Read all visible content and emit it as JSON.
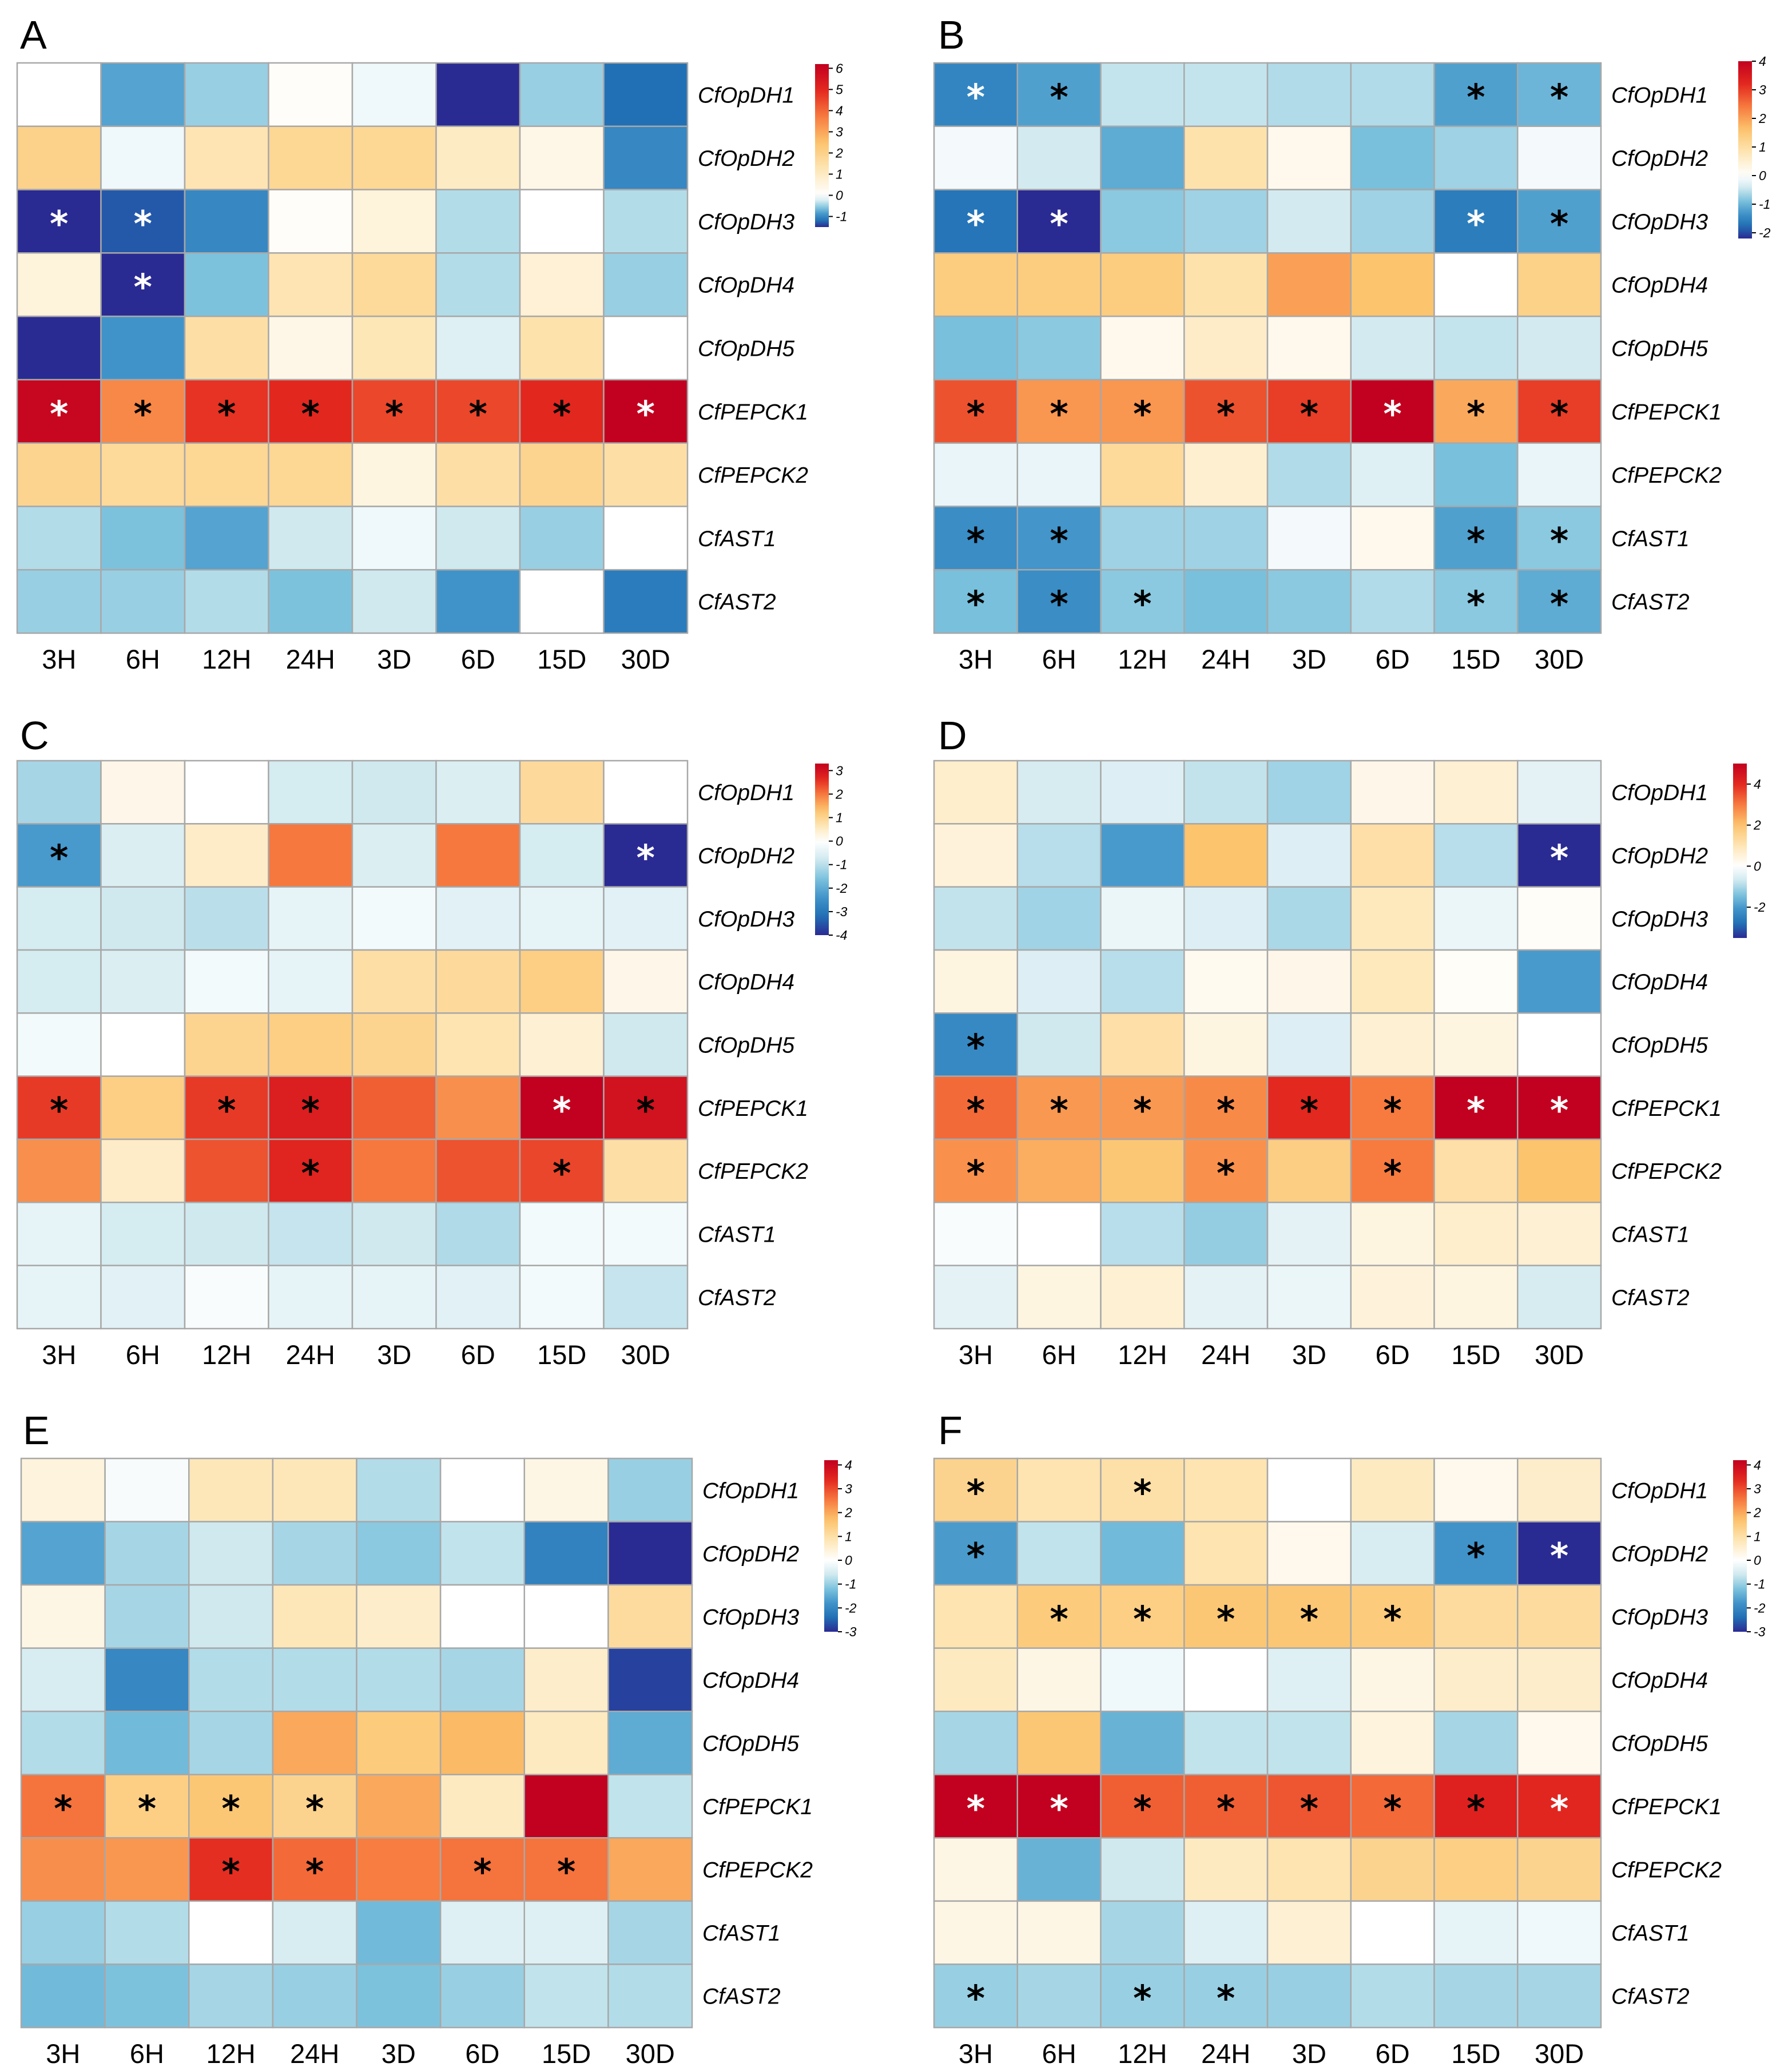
{
  "colors": {
    "scale": [
      "#2a2a93",
      "#2170b5",
      "#4093c9",
      "#7cc2dd",
      "#cfe9ef",
      "#ffffff",
      "#fde6b5",
      "#fcc46d",
      "#f77b3f",
      "#e3281f",
      "#c2001f"
    ],
    "star_dark": "#000000",
    "star_light": "#ffffff",
    "grid": "#a8a8a8"
  },
  "chart_data": [
    {
      "type": "heatmap",
      "panel": "A",
      "rows": [
        "CfOpDH1",
        "CfOpDH2",
        "CfOpDH3",
        "CfOpDH4",
        "CfOpDH5",
        "CfPEPCK1",
        "CfPEPCK2",
        "CfAST1",
        "CfAST2"
      ],
      "columns": [
        "3H",
        "6H",
        "12H",
        "24H",
        "3D",
        "6D",
        "15D",
        "30D"
      ],
      "values": [
        [
          0.0,
          -0.8,
          -0.5,
          0.1,
          -0.1,
          -1.5,
          -0.5,
          -1.2
        ],
        [
          2.0,
          -0.1,
          1.3,
          1.8,
          1.8,
          1.0,
          0.4,
          -1.0
        ],
        [
          -1.5,
          -1.3,
          -1.0,
          0.1,
          0.6,
          -0.4,
          0.0,
          -0.4
        ],
        [
          0.6,
          -1.5,
          -0.6,
          1.3,
          1.7,
          -0.4,
          0.7,
          -0.5
        ],
        [
          -1.5,
          -0.9,
          1.5,
          0.4,
          1.2,
          -0.2,
          1.4,
          0.0
        ],
        [
          6.0,
          3.5,
          4.8,
          5.0,
          4.5,
          4.5,
          5.0,
          6.2
        ],
        [
          1.9,
          1.7,
          1.8,
          1.8,
          0.5,
          1.5,
          1.9,
          1.5
        ],
        [
          -0.4,
          -0.6,
          -0.8,
          -0.3,
          -0.1,
          -0.3,
          -0.5,
          0.0
        ],
        [
          -0.5,
          -0.5,
          -0.4,
          -0.6,
          -0.3,
          -0.9,
          0.0,
          -1.1
        ]
      ],
      "significant": [
        [
          0,
          0,
          0,
          0,
          0,
          0,
          0,
          0
        ],
        [
          0,
          0,
          0,
          0,
          0,
          0,
          0,
          0
        ],
        [
          1,
          1,
          0,
          0,
          0,
          0,
          0,
          0
        ],
        [
          0,
          1,
          0,
          0,
          0,
          0,
          0,
          0
        ],
        [
          0,
          0,
          0,
          0,
          0,
          0,
          0,
          0
        ],
        [
          1,
          1,
          1,
          1,
          1,
          1,
          1,
          1
        ],
        [
          0,
          0,
          0,
          0,
          0,
          0,
          0,
          0
        ],
        [
          0,
          0,
          0,
          0,
          0,
          0,
          0,
          0
        ],
        [
          0,
          0,
          0,
          0,
          0,
          0,
          0,
          0
        ]
      ],
      "star_white": [
        [
          2,
          0
        ],
        [
          2,
          1
        ],
        [
          3,
          1
        ],
        [
          5,
          0
        ],
        [
          5,
          7
        ]
      ],
      "colorbar": {
        "min": -1.5,
        "max": 6.2,
        "ticks": [
          6,
          5,
          4,
          3,
          2,
          1,
          0,
          -1
        ]
      }
    },
    {
      "type": "heatmap",
      "panel": "B",
      "rows": [
        "CfOpDH1",
        "CfOpDH2",
        "CfOpDH3",
        "CfOpDH4",
        "CfOpDH5",
        "CfPEPCK1",
        "CfPEPCK2",
        "CfAST1",
        "CfAST2"
      ],
      "columns": [
        "3H",
        "6H",
        "12H",
        "24H",
        "3D",
        "6D",
        "15D",
        "30D"
      ],
      "values": [
        [
          -1.5,
          -1.2,
          -0.5,
          -0.5,
          -0.6,
          -0.6,
          -1.2,
          -1.0
        ],
        [
          -0.1,
          -0.4,
          -1.1,
          0.9,
          0.2,
          -0.9,
          -0.7,
          -0.1
        ],
        [
          -1.7,
          -2.2,
          -0.8,
          -0.7,
          -0.4,
          -0.7,
          -1.6,
          -1.2
        ],
        [
          1.4,
          1.4,
          1.4,
          0.9,
          2.0,
          1.6,
          0.0,
          1.3
        ],
        [
          -0.9,
          -0.8,
          0.2,
          0.6,
          0.2,
          -0.4,
          -0.5,
          -0.4
        ],
        [
          2.8,
          2.1,
          2.1,
          2.8,
          3.0,
          4.0,
          1.9,
          3.0
        ],
        [
          -0.2,
          -0.2,
          1.1,
          0.5,
          -0.6,
          -0.3,
          -0.9,
          -0.2
        ],
        [
          -1.4,
          -1.3,
          -0.7,
          -0.7,
          -0.1,
          0.2,
          -1.2,
          -0.8
        ],
        [
          -0.9,
          -1.4,
          -0.8,
          -0.9,
          -0.8,
          -0.6,
          -0.8,
          -1.1
        ]
      ],
      "significant": [
        [
          1,
          1,
          0,
          0,
          0,
          0,
          1,
          1
        ],
        [
          0,
          0,
          0,
          0,
          0,
          0,
          0,
          0
        ],
        [
          1,
          1,
          0,
          0,
          0,
          0,
          1,
          1
        ],
        [
          0,
          0,
          0,
          0,
          0,
          0,
          0,
          0
        ],
        [
          0,
          0,
          0,
          0,
          0,
          0,
          0,
          0
        ],
        [
          1,
          1,
          1,
          1,
          1,
          1,
          1,
          1
        ],
        [
          0,
          0,
          0,
          0,
          0,
          0,
          0,
          0
        ],
        [
          1,
          1,
          0,
          0,
          0,
          0,
          1,
          1
        ],
        [
          1,
          1,
          1,
          0,
          0,
          0,
          1,
          1
        ]
      ],
      "star_white": [
        [
          0,
          0
        ],
        [
          2,
          0
        ],
        [
          2,
          1
        ],
        [
          2,
          6
        ],
        [
          5,
          5
        ]
      ],
      "colorbar": {
        "min": -2.2,
        "max": 4.0,
        "ticks": [
          4,
          3,
          2,
          1,
          0,
          -1,
          -2
        ]
      }
    },
    {
      "type": "heatmap",
      "panel": "C",
      "rows": [
        "CfOpDH1",
        "CfOpDH2",
        "CfOpDH3",
        "CfOpDH4",
        "CfOpDH5",
        "CfPEPCK1",
        "CfPEPCK2",
        "CfAST1",
        "CfAST2"
      ],
      "columns": [
        "3H",
        "6H",
        "12H",
        "24H",
        "3D",
        "6D",
        "15D",
        "30D"
      ],
      "values": [
        [
          -1.2,
          0.2,
          0.0,
          -0.7,
          -0.8,
          -0.6,
          0.9,
          0.0
        ],
        [
          -2.3,
          -0.6,
          0.5,
          2.0,
          -0.6,
          2.0,
          -0.7,
          -4.0
        ],
        [
          -0.7,
          -0.8,
          -1.0,
          -0.4,
          -0.2,
          -0.5,
          -0.4,
          -0.5
        ],
        [
          -0.7,
          -0.6,
          -0.2,
          -0.4,
          0.8,
          0.9,
          1.1,
          0.2
        ],
        [
          -0.2,
          0.0,
          1.0,
          1.1,
          1.0,
          0.7,
          0.4,
          -0.8
        ],
        [
          2.5,
          1.1,
          2.5,
          2.8,
          2.2,
          1.8,
          3.3,
          3.0
        ],
        [
          1.8,
          0.5,
          2.3,
          2.7,
          2.0,
          2.3,
          2.4,
          0.8
        ],
        [
          -0.4,
          -0.7,
          -0.8,
          -0.9,
          -0.8,
          -1.1,
          -0.2,
          -0.2
        ],
        [
          -0.4,
          -0.5,
          -0.1,
          -0.4,
          -0.4,
          -0.5,
          -0.2,
          -0.9
        ]
      ],
      "significant": [
        [
          0,
          0,
          0,
          0,
          0,
          0,
          0,
          0
        ],
        [
          1,
          0,
          0,
          0,
          0,
          0,
          0,
          1
        ],
        [
          0,
          0,
          0,
          0,
          0,
          0,
          0,
          0
        ],
        [
          0,
          0,
          0,
          0,
          0,
          0,
          0,
          0
        ],
        [
          0,
          0,
          0,
          0,
          0,
          0,
          0,
          0
        ],
        [
          1,
          0,
          1,
          1,
          0,
          0,
          1,
          1
        ],
        [
          0,
          0,
          0,
          1,
          0,
          0,
          1,
          0
        ],
        [
          0,
          0,
          0,
          0,
          0,
          0,
          0,
          0
        ],
        [
          0,
          0,
          0,
          0,
          0,
          0,
          0,
          0
        ]
      ],
      "star_white": [
        [
          1,
          7
        ],
        [
          5,
          6
        ]
      ],
      "colorbar": {
        "min": -4.0,
        "max": 3.3,
        "ticks": [
          3,
          2,
          1,
          0,
          -1,
          -2,
          -3,
          -4
        ]
      }
    },
    {
      "type": "heatmap",
      "panel": "D",
      "rows": [
        "CfOpDH1",
        "CfOpDH2",
        "CfOpDH3",
        "CfOpDH4",
        "CfOpDH5",
        "CfPEPCK1",
        "CfPEPCK2",
        "CfAST1",
        "CfAST2"
      ],
      "columns": [
        "3H",
        "6H",
        "12H",
        "24H",
        "3D",
        "6D",
        "15D",
        "30D"
      ],
      "values": [
        [
          0.7,
          -0.6,
          -0.5,
          -0.8,
          -1.1,
          0.3,
          0.6,
          -0.4
        ],
        [
          0.5,
          -0.9,
          -2.0,
          2.0,
          -0.5,
          1.2,
          -0.9,
          -3.5
        ],
        [
          -0.8,
          -1.1,
          -0.3,
          -0.5,
          -1.0,
          0.9,
          -0.3,
          0.1
        ],
        [
          0.4,
          -0.5,
          -0.9,
          0.2,
          0.3,
          0.9,
          0.1,
          -2.0
        ],
        [
          -2.3,
          -0.7,
          1.2,
          0.4,
          -0.5,
          0.6,
          0.4,
          0.0
        ],
        [
          3.2,
          2.6,
          2.6,
          2.8,
          4.0,
          3.0,
          5.0,
          5.0
        ],
        [
          2.7,
          2.3,
          1.9,
          2.7,
          1.7,
          3.0,
          1.2,
          2.0
        ],
        [
          -0.1,
          0.0,
          -0.9,
          -1.2,
          -0.4,
          0.4,
          0.7,
          0.6
        ],
        [
          -0.4,
          0.4,
          0.6,
          -0.4,
          -0.3,
          0.5,
          0.4,
          -0.6
        ]
      ],
      "significant": [
        [
          0,
          0,
          0,
          0,
          0,
          0,
          0,
          0
        ],
        [
          0,
          0,
          0,
          0,
          0,
          0,
          0,
          1
        ],
        [
          0,
          0,
          0,
          0,
          0,
          0,
          0,
          0
        ],
        [
          0,
          0,
          0,
          0,
          0,
          0,
          0,
          0
        ],
        [
          1,
          0,
          0,
          0,
          0,
          0,
          0,
          0
        ],
        [
          1,
          1,
          1,
          1,
          1,
          1,
          1,
          1
        ],
        [
          1,
          0,
          0,
          1,
          0,
          1,
          0,
          0
        ],
        [
          0,
          0,
          0,
          0,
          0,
          0,
          0,
          0
        ],
        [
          0,
          0,
          0,
          0,
          0,
          0,
          0,
          0
        ]
      ],
      "star_white": [
        [
          1,
          7
        ],
        [
          5,
          6
        ],
        [
          5,
          7
        ]
      ],
      "colorbar": {
        "min": -3.5,
        "max": 5.0,
        "ticks": [
          4,
          2,
          0,
          -2
        ]
      }
    },
    {
      "type": "heatmap",
      "panel": "E",
      "rows": [
        "CfOpDH1",
        "CfOpDH2",
        "CfOpDH3",
        "CfOpDH4",
        "CfOpDH5",
        "CfPEPCK1",
        "CfPEPCK2",
        "CfAST1",
        "CfAST2"
      ],
      "columns": [
        "3H",
        "6H",
        "12H",
        "24H",
        "3D",
        "6D",
        "15D",
        "30D"
      ],
      "values": [
        [
          0.4,
          -0.1,
          0.8,
          0.8,
          -0.8,
          0.0,
          0.3,
          -1.0
        ],
        [
          -1.6,
          -0.9,
          -0.6,
          -0.9,
          -1.1,
          -0.7,
          -2.1,
          -3.0
        ],
        [
          0.3,
          -0.9,
          -0.6,
          0.8,
          0.6,
          0.0,
          0.0,
          1.1
        ],
        [
          -0.5,
          -2.0,
          -0.8,
          -0.8,
          -0.8,
          -0.9,
          0.6,
          -2.8
        ],
        [
          -0.8,
          -1.3,
          -0.9,
          2.0,
          1.5,
          1.8,
          0.7,
          -1.5
        ],
        [
          2.6,
          1.4,
          1.6,
          1.3,
          2.0,
          0.7,
          4.2,
          -0.7
        ],
        [
          2.3,
          2.2,
          3.3,
          2.7,
          2.5,
          2.6,
          2.6,
          2.0
        ],
        [
          -1.0,
          -0.8,
          0.0,
          -0.5,
          -1.3,
          -0.4,
          -0.4,
          -0.9
        ],
        [
          -1.3,
          -1.2,
          -0.9,
          -1.0,
          -1.2,
          -1.0,
          -0.7,
          -0.8
        ]
      ],
      "significant": [
        [
          0,
          0,
          0,
          0,
          0,
          0,
          0,
          0
        ],
        [
          0,
          0,
          0,
          0,
          0,
          0,
          0,
          0
        ],
        [
          0,
          0,
          0,
          0,
          0,
          0,
          0,
          0
        ],
        [
          0,
          0,
          0,
          0,
          0,
          0,
          0,
          0
        ],
        [
          0,
          0,
          0,
          0,
          0,
          0,
          0,
          0
        ],
        [
          1,
          1,
          1,
          1,
          0,
          0,
          0,
          0
        ],
        [
          0,
          0,
          1,
          1,
          0,
          1,
          1,
          0
        ],
        [
          0,
          0,
          0,
          0,
          0,
          0,
          0,
          0
        ],
        [
          0,
          0,
          0,
          0,
          0,
          0,
          0,
          0
        ]
      ],
      "star_white": [],
      "colorbar": {
        "min": -3.0,
        "max": 4.2,
        "ticks": [
          4,
          3,
          2,
          1,
          0,
          -1,
          -2,
          -3
        ]
      }
    },
    {
      "type": "heatmap",
      "panel": "F",
      "rows": [
        "CfOpDH1",
        "CfOpDH2",
        "CfOpDH3",
        "CfOpDH4",
        "CfOpDH5",
        "CfPEPCK1",
        "CfPEPCK2",
        "CfAST1",
        "CfAST2"
      ],
      "columns": [
        "3H",
        "6H",
        "12H",
        "24H",
        "3D",
        "6D",
        "15D",
        "30D"
      ],
      "values": [
        [
          1.3,
          0.9,
          1.0,
          0.9,
          0.0,
          0.7,
          0.2,
          0.6
        ],
        [
          -1.7,
          -0.7,
          -1.3,
          0.9,
          0.2,
          -0.5,
          -1.8,
          -3.0
        ],
        [
          0.9,
          1.5,
          1.4,
          1.6,
          1.6,
          1.5,
          1.1,
          1.1
        ],
        [
          0.7,
          0.3,
          -0.2,
          0.0,
          -0.4,
          0.3,
          0.6,
          0.6
        ],
        [
          -0.9,
          1.6,
          -1.4,
          -0.7,
          -0.7,
          0.4,
          -0.9,
          0.2
        ],
        [
          4.2,
          4.2,
          2.8,
          2.8,
          2.9,
          2.7,
          3.5,
          3.4
        ],
        [
          0.3,
          -1.4,
          -0.6,
          0.7,
          0.9,
          1.3,
          1.4,
          1.3
        ],
        [
          0.3,
          0.3,
          -0.9,
          -0.4,
          0.5,
          0.0,
          -0.3,
          -0.2
        ],
        [
          -1.0,
          -0.9,
          -1.0,
          -1.0,
          -1.0,
          -0.8,
          -0.9,
          -0.9
        ]
      ],
      "significant": [
        [
          1,
          0,
          1,
          0,
          0,
          0,
          0,
          0
        ],
        [
          1,
          0,
          0,
          0,
          0,
          0,
          1,
          1
        ],
        [
          0,
          1,
          1,
          1,
          1,
          1,
          0,
          0
        ],
        [
          0,
          0,
          0,
          0,
          0,
          0,
          0,
          0
        ],
        [
          0,
          0,
          0,
          0,
          0,
          0,
          0,
          0
        ],
        [
          1,
          1,
          1,
          1,
          1,
          1,
          1,
          1
        ],
        [
          0,
          0,
          0,
          0,
          0,
          0,
          0,
          0
        ],
        [
          0,
          0,
          0,
          0,
          0,
          0,
          0,
          0
        ],
        [
          1,
          0,
          1,
          1,
          0,
          0,
          0,
          0
        ]
      ],
      "star_white": [
        [
          1,
          7
        ],
        [
          5,
          0
        ],
        [
          5,
          1
        ],
        [
          5,
          7
        ]
      ],
      "colorbar": {
        "min": -3.0,
        "max": 4.2,
        "ticks": [
          4,
          3,
          2,
          1,
          0,
          -1,
          -2,
          -3
        ]
      }
    }
  ]
}
